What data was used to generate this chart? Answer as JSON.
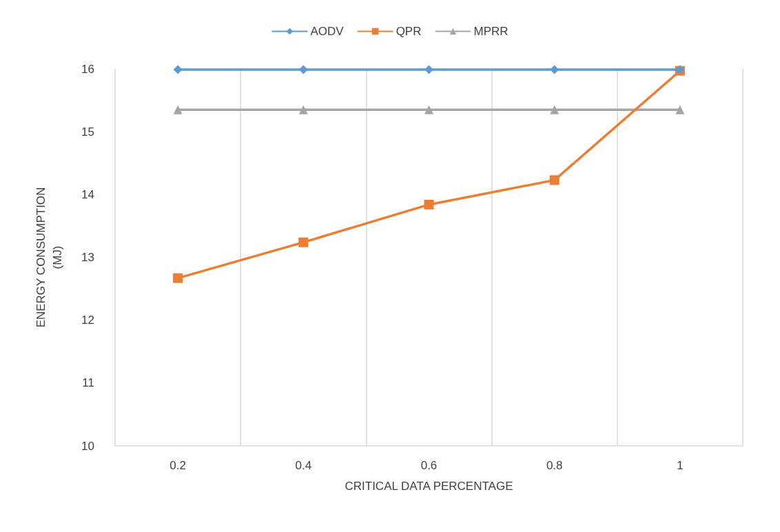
{
  "chart_data": {
    "type": "line",
    "xlabel": "CRITICAL DATA PERCENTAGE",
    "ylabel": "ENERGY CONSUMPTION\n(MJ)",
    "categories": [
      "0.2",
      "0.4",
      "0.6",
      "0.8",
      "1"
    ],
    "series": [
      {
        "name": "AODV",
        "color": "#5b9bd5",
        "marker": "diamond",
        "values": [
          15.99,
          15.99,
          15.99,
          15.99,
          15.99
        ]
      },
      {
        "name": "QPR",
        "color": "#ed7d31",
        "marker": "square",
        "values": [
          12.67,
          13.24,
          13.84,
          14.23,
          15.97
        ]
      },
      {
        "name": "MPRR",
        "color": "#a5a5a5",
        "marker": "triangle",
        "values": [
          15.35,
          15.35,
          15.35,
          15.35,
          15.35
        ]
      }
    ],
    "ylim": [
      10,
      16
    ],
    "yticks": [
      10,
      11,
      12,
      13,
      14,
      15,
      16
    ],
    "grid": "x",
    "legend": "top",
    "line_style": "solid"
  }
}
